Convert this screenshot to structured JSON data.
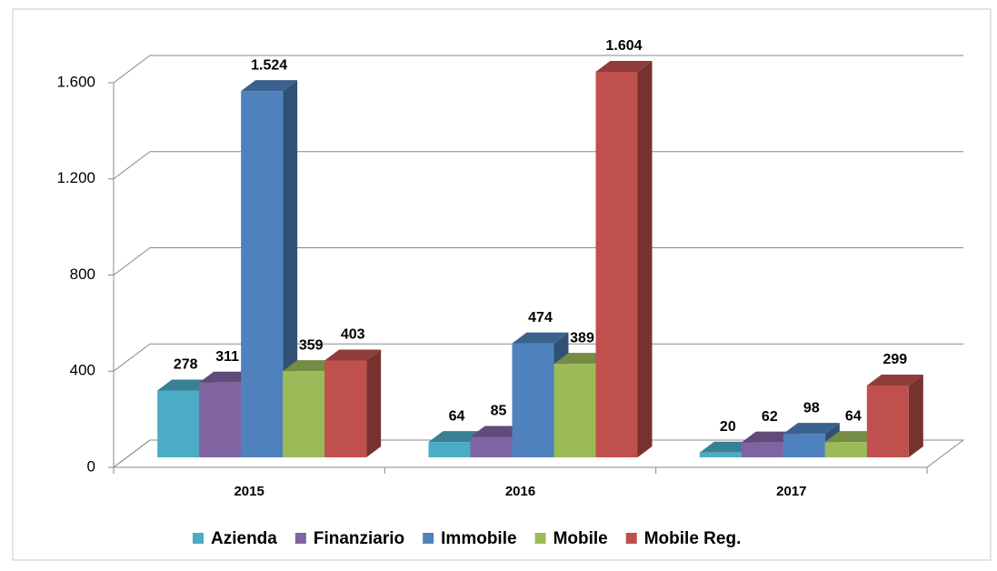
{
  "chart_data": {
    "type": "bar3d",
    "categories": [
      "2015",
      "2016",
      "2017"
    ],
    "series": [
      {
        "name": "Azienda",
        "color": "#4bacc6",
        "values": [
          278,
          64,
          20
        ],
        "value_labels": [
          "278",
          "64",
          "20"
        ]
      },
      {
        "name": "Finanziario",
        "color": "#8064a2",
        "values": [
          311,
          85,
          62
        ],
        "value_labels": [
          "311",
          "85",
          "62"
        ]
      },
      {
        "name": "Immobile",
        "color": "#4f81bd",
        "values": [
          1524,
          474,
          98
        ],
        "value_labels": [
          "1.524",
          "474",
          "98"
        ]
      },
      {
        "name": "Mobile",
        "color": "#9bbb59",
        "values": [
          359,
          389,
          64
        ],
        "value_labels": [
          "359",
          "389",
          "64"
        ]
      },
      {
        "name": "Mobile Reg.",
        "color": "#c0504d",
        "values": [
          403,
          1604,
          299
        ],
        "value_labels": [
          "403",
          "1.604",
          "299"
        ]
      }
    ],
    "ylim": [
      0,
      1600
    ],
    "yticks": [
      0,
      400,
      800,
      {
        "value": 1200,
        "label": "1.200"
      },
      {
        "value": 1600,
        "label": "1.600"
      }
    ],
    "grid": true,
    "legend": "bottom"
  }
}
